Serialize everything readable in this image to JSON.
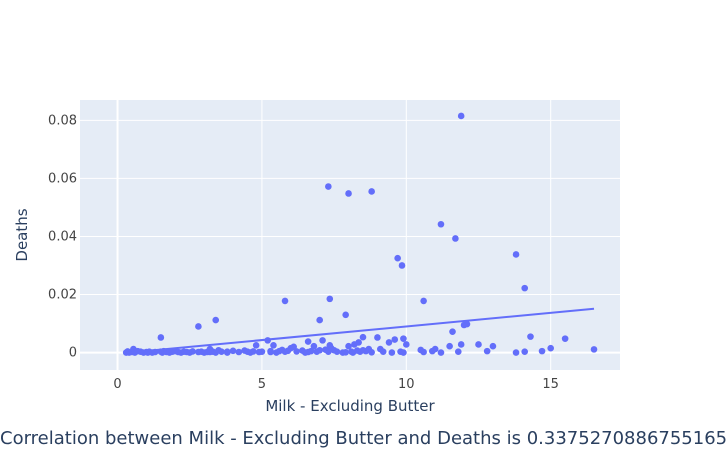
{
  "chart_data": {
    "type": "scatter",
    "xlabel": "Milk - Excluding Butter",
    "ylabel": "Deaths",
    "xlim": [
      -1.3,
      17.4
    ],
    "ylim": [
      -0.006,
      0.087
    ],
    "x_ticks": [
      0,
      5,
      10,
      15
    ],
    "x_tick_labels": [
      "0",
      "5",
      "10",
      "15"
    ],
    "y_ticks": [
      0,
      0.02,
      0.04,
      0.06,
      0.08
    ],
    "y_tick_labels": [
      "0",
      "0.02",
      "0.04",
      "0.06",
      "0.08"
    ],
    "grid": true,
    "series": [
      {
        "type": "scatter",
        "color": "#636efa",
        "x": [
          0.3,
          0.35,
          0.4,
          0.5,
          0.55,
          0.6,
          0.7,
          0.8,
          0.9,
          1.0,
          1.05,
          1.1,
          1.2,
          1.3,
          1.5,
          1.55,
          1.6,
          1.7,
          1.8,
          1.9,
          2.0,
          2.1,
          2.2,
          2.3,
          2.4,
          2.5,
          2.6,
          2.8,
          2.9,
          3.0,
          3.1,
          3.2,
          3.3,
          3.4,
          3.5,
          3.6,
          3.8,
          4.0,
          4.2,
          4.4,
          4.5,
          4.6,
          4.7,
          4.8,
          4.9,
          5.0,
          5.2,
          5.3,
          5.4,
          5.5,
          5.6,
          5.7,
          5.8,
          5.9,
          6.0,
          6.1,
          6.2,
          6.4,
          6.5,
          6.6,
          6.7,
          6.8,
          6.9,
          7.0,
          7.1,
          7.2,
          7.3,
          7.35,
          7.4,
          7.5,
          7.6,
          7.8,
          7.9,
          8.0,
          8.1,
          8.15,
          8.2,
          8.3,
          8.35,
          8.4,
          8.5,
          8.6,
          8.7,
          8.8,
          9.0,
          9.1,
          9.2,
          9.4,
          9.5,
          9.6,
          9.8,
          9.9,
          10.0,
          10.5,
          10.6,
          10.9,
          11.0,
          11.2,
          11.5,
          11.6,
          11.8,
          11.9,
          12.0,
          12.1,
          12.5,
          12.8,
          13.0,
          13.8,
          14.1,
          14.3,
          14.7,
          15.0,
          15.5,
          16.5,
          2.8,
          3.4,
          1.5,
          5.8,
          7.0,
          7.35,
          7.3,
          7.9,
          8.0,
          8.8,
          9.7,
          9.85,
          10.6,
          11.2,
          11.7,
          11.9,
          13.8,
          14.1,
          3.2,
          3.8,
          5.3,
          6.6,
          8.5,
          9.9
        ],
        "y": [
          0.0,
          0.0004,
          0.0,
          0.0002,
          0.0012,
          0.0,
          0.0005,
          0.0003,
          0.0,
          0.0002,
          0.0,
          0.0003,
          0.0,
          0.0002,
          0.0003,
          0.0,
          0.0005,
          0.0002,
          0.0,
          0.0003,
          0.0005,
          0.0002,
          0.0,
          0.0003,
          0.0002,
          0.0,
          0.0004,
          0.0002,
          0.0003,
          0.0,
          0.0002,
          0.0012,
          0.0003,
          0.0,
          0.0008,
          0.0003,
          0.0,
          0.0006,
          0.0002,
          0.0007,
          0.0003,
          0.0,
          0.0004,
          0.0025,
          0.0002,
          0.0003,
          0.0042,
          0.0002,
          0.0025,
          0.0,
          0.0005,
          0.0009,
          0.0003,
          0.0006,
          0.0015,
          0.002,
          0.0004,
          0.0007,
          0.0,
          0.0038,
          0.0005,
          0.0022,
          0.0003,
          0.0008,
          0.0042,
          0.001,
          0.0003,
          0.0025,
          0.0015,
          0.0008,
          0.0003,
          0.0,
          0.0001,
          0.0022,
          0.0003,
          0.0,
          0.0028,
          0.0007,
          0.0035,
          0.0003,
          0.0008,
          0.0005,
          0.0012,
          0.0001,
          0.0052,
          0.0012,
          0.0003,
          0.0035,
          0.0,
          0.0045,
          0.0003,
          0.0,
          0.0028,
          0.0009,
          0.0002,
          0.0005,
          0.0012,
          0.0,
          0.0022,
          0.0072,
          0.0003,
          0.0028,
          0.0095,
          0.0098,
          0.0028,
          0.0005,
          0.0022,
          0.0,
          0.0003,
          0.0055,
          0.0005,
          0.0015,
          0.0048,
          0.0011,
          0.009,
          0.0112,
          0.0052,
          0.0178,
          0.0112,
          0.0185,
          0.0572,
          0.013,
          0.0548,
          0.0555,
          0.0325,
          0.03,
          0.0178,
          0.0442,
          0.0393,
          0.0815,
          0.0338,
          0.0222,
          0.0002,
          0.0003,
          0.0005,
          0.0002,
          0.0053,
          0.0048
        ]
      },
      {
        "type": "line",
        "color": "#636efa",
        "x": [
          0.3,
          16.5
        ],
        "y": [
          -0.0001,
          0.0151
        ]
      }
    ]
  },
  "caption": "Correlation between Milk - Excluding Butter and Deaths is 0.3375270886755165"
}
